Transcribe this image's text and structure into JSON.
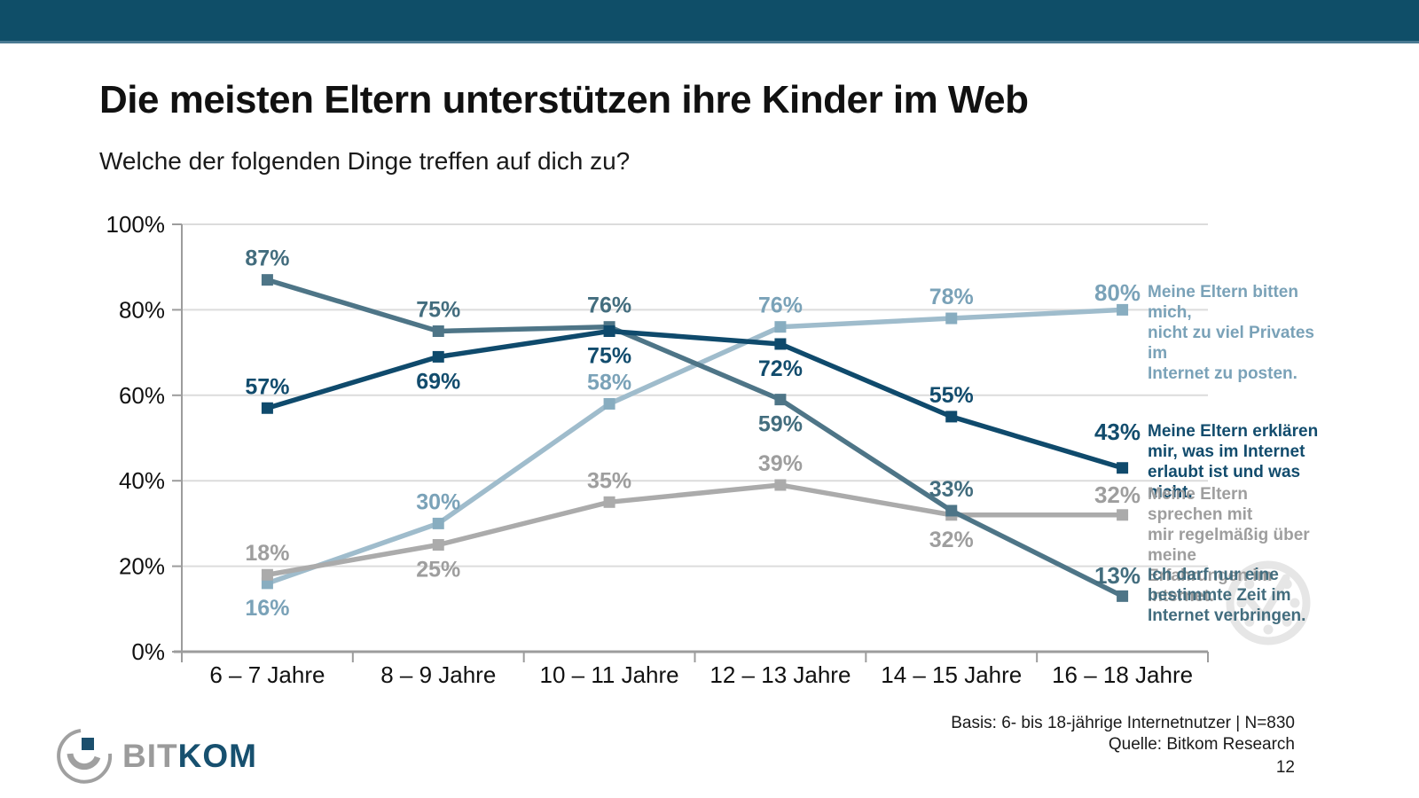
{
  "header": {
    "bar_color": "#0F4E68"
  },
  "title": "Die meisten Eltern unterstützen ihre Kinder im Web",
  "subtitle": "Welche der folgenden Dinge treffen auf dich zu?",
  "chart_data": {
    "type": "line",
    "title": "Die meisten Eltern unterstützen ihre Kinder im Web",
    "xlabel": "",
    "ylabel": "",
    "ylim": [
      0,
      100
    ],
    "grid": true,
    "legend_position": "right",
    "categories": [
      "6 – 7 Jahre",
      "8 – 9 Jahre",
      "10 – 11 Jahre",
      "12 – 13 Jahre",
      "14 – 15 Jahre",
      "16 – 18 Jahre"
    ],
    "y_ticks": [
      "100%",
      "80%",
      "60%",
      "40%",
      "20%",
      "0%"
    ],
    "colors": {
      "grid": "#DCDCDC",
      "axis": "#9C9C9C",
      "watermark": "#E6E6E6"
    },
    "series": [
      {
        "name": "Meine Eltern bitten mich, nicht zu viel Privates im Internet zu posten.",
        "values": [
          16,
          30,
          58,
          76,
          78,
          80
        ],
        "color": "#9FBCCC",
        "marker_color": "#88ADC0",
        "label_color": "#7AA2B8",
        "label_positions": [
          "below",
          "above",
          "above",
          "above",
          "above",
          "none"
        ],
        "legend_value": "80%",
        "legend_text": "Meine Eltern bitten mich,\nnicht zu viel Privates im\nInternet zu posten."
      },
      {
        "name": "Meine Eltern erklären mir, was im Internet erlaubt ist und was nicht.",
        "values": [
          57,
          69,
          75,
          72,
          55,
          43
        ],
        "color": "#0F4A6C",
        "marker_color": "#0F4A6C",
        "label_color": "#124C6D",
        "label_positions": [
          "above",
          "below",
          "below",
          "below",
          "above",
          "none"
        ],
        "legend_value": "43%",
        "legend_text": "Meine Eltern erklären\nmir, was im Internet\nerlaubt ist und was nicht."
      },
      {
        "name": "Meine Eltern sprechen mit mir regelmäßig über meine Erfahrungen im Internet.",
        "values": [
          18,
          25,
          35,
          39,
          32,
          32
        ],
        "color": "#ABABAB",
        "marker_color": "#ABABAB",
        "label_color": "#9E9E9E",
        "label_positions": [
          "above",
          "below",
          "above",
          "above",
          "below",
          "none"
        ],
        "legend_value": "32%",
        "legend_text": "Meine Eltern sprechen mit\nmir regelmäßig über meine\nErfahrungen im Internet."
      },
      {
        "name": "Ich darf nur eine bestimmte Zeit im Internet verbringen.",
        "values": [
          87,
          75,
          76,
          59,
          33,
          13
        ],
        "color": "#4E7587",
        "marker_color": "#4E7587",
        "label_color": "#436D7E",
        "label_positions": [
          "above",
          "above",
          "above",
          "below",
          "above",
          "none"
        ],
        "legend_value": "13%",
        "legend_text": "Ich darf nur eine\nbestimmte Zeit im\nInternet verbringen."
      }
    ]
  },
  "footer": {
    "basis": "Basis: 6- bis 18-jährige Internetnutzer | N=830",
    "source": "Quelle: Bitkom Research",
    "page": "12"
  },
  "logo": {
    "text_gray": "BIT",
    "text_navy": "KOM"
  }
}
